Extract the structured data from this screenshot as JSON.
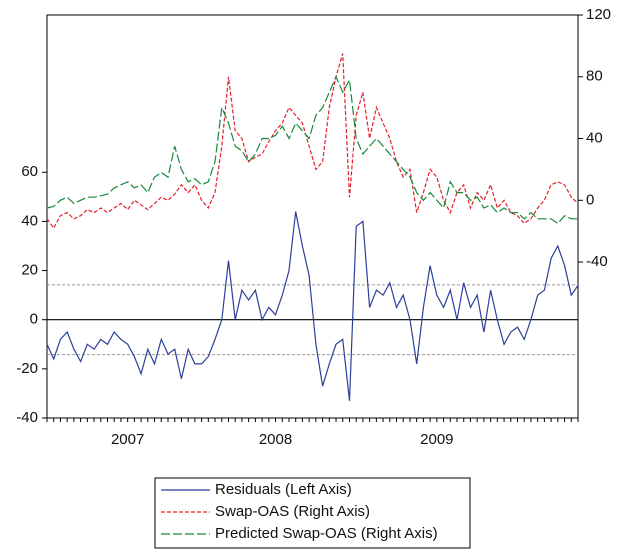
{
  "chart_data": {
    "type": "line",
    "categories": [
      null,
      null,
      null,
      null,
      null,
      null,
      null,
      null,
      null,
      null,
      null,
      null,
      "2007",
      null,
      null,
      null,
      null,
      null,
      null,
      null,
      null,
      null,
      null,
      null,
      null,
      null,
      null,
      null,
      null,
      null,
      null,
      null,
      null,
      null,
      "2008",
      null,
      null,
      null,
      null,
      null,
      null,
      null,
      null,
      null,
      null,
      null,
      null,
      null,
      null,
      null,
      null,
      null,
      null,
      null,
      null,
      null,
      null,
      null,
      "2009",
      null,
      null,
      null,
      null,
      null,
      null,
      null,
      null,
      null,
      null,
      null,
      null,
      null,
      null,
      null,
      null,
      null,
      null,
      null,
      null,
      null
    ],
    "ylim": [
      -40,
      124
    ],
    "yticks": [
      -40,
      -20,
      0,
      20,
      40,
      60
    ],
    "y2lim": [
      -141,
      120
    ],
    "y2ticks": [
      -40,
      0,
      40,
      80,
      120
    ],
    "reference_lines": [
      14.2,
      -14.2
    ],
    "series": [
      {
        "name": "Residuals (Left Axis)",
        "color": "#2b3f99",
        "dash": "solid",
        "values": [
          -10,
          -16,
          -8,
          -5,
          -12,
          -17,
          -10,
          -12,
          -8,
          -10,
          -5,
          -8,
          -10,
          -15,
          -22,
          -12,
          -18,
          -8,
          -14,
          -12,
          -24,
          -12,
          -18,
          -18,
          -15,
          -8,
          0,
          24,
          0,
          12,
          8,
          12,
          0,
          5,
          2,
          10,
          20,
          44,
          30,
          18,
          -10,
          -27,
          -18,
          -10,
          -8,
          -33,
          38,
          40,
          5,
          12,
          10,
          15,
          5,
          10,
          0,
          -18,
          5,
          22,
          10,
          5,
          12,
          0,
          15,
          5,
          10,
          -5,
          12,
          0,
          -10,
          -5,
          -3,
          -8,
          0,
          10,
          12,
          25,
          30,
          22,
          10,
          14
        ]
      },
      {
        "name": "Swap-OAS (Right Axis)",
        "color": "#e3202a",
        "dash": "dashed",
        "axis": "y2",
        "values": [
          -12,
          -18,
          -10,
          -8,
          -12,
          -10,
          -6,
          -8,
          -5,
          -8,
          -5,
          -2,
          -6,
          0,
          -3,
          -6,
          -2,
          2,
          0,
          4,
          10,
          5,
          10,
          0,
          -5,
          5,
          35,
          80,
          45,
          40,
          25,
          28,
          30,
          38,
          45,
          50,
          60,
          55,
          50,
          35,
          20,
          25,
          60,
          80,
          95,
          2,
          55,
          70,
          40,
          60,
          50,
          40,
          25,
          15,
          20,
          -8,
          5,
          20,
          15,
          0,
          -8,
          5,
          10,
          -5,
          5,
          0,
          10,
          -5,
          0,
          -8,
          -10,
          -15,
          -12,
          -5,
          0,
          10,
          12,
          10,
          2,
          -2
        ]
      },
      {
        "name": "Predicted Swap-OAS (Right Axis)",
        "color": "#178a3a",
        "dash": "longdash",
        "axis": "y2",
        "values": [
          -5,
          -4,
          0,
          2,
          -2,
          0,
          2,
          2,
          3,
          4,
          8,
          10,
          12,
          8,
          10,
          5,
          15,
          18,
          15,
          35,
          20,
          12,
          14,
          10,
          12,
          25,
          60,
          50,
          35,
          32,
          25,
          30,
          40,
          40,
          42,
          48,
          40,
          50,
          45,
          40,
          55,
          60,
          70,
          80,
          70,
          78,
          40,
          30,
          35,
          40,
          35,
          30,
          25,
          20,
          15,
          5,
          0,
          5,
          0,
          -5,
          12,
          5,
          5,
          0,
          2,
          -5,
          -3,
          -8,
          -5,
          -8,
          -8,
          -12,
          -8,
          -12,
          -12,
          -12,
          -15,
          -10,
          -12,
          -12
        ]
      }
    ]
  }
}
